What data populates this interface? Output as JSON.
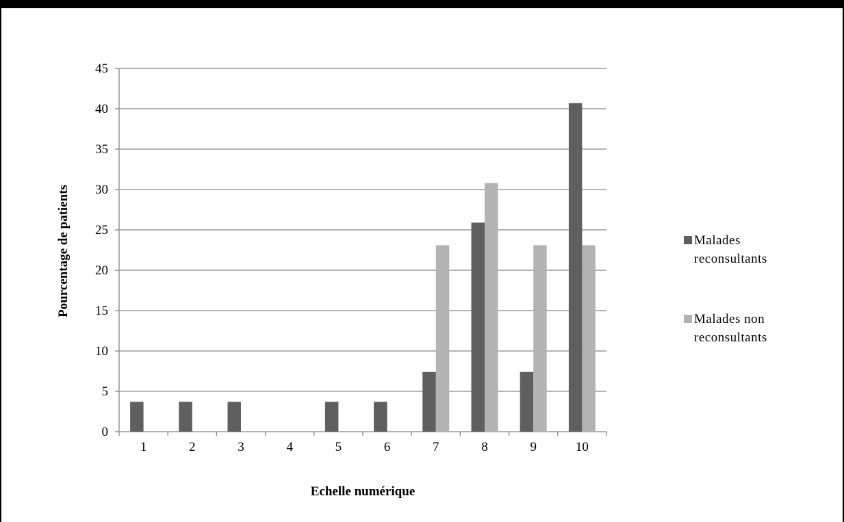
{
  "chart_data": {
    "type": "bar",
    "title": "",
    "xlabel": "Echelle numérique",
    "ylabel": "Pourcentage de patients",
    "categories": [
      "1",
      "2",
      "3",
      "4",
      "5",
      "6",
      "7",
      "8",
      "9",
      "10"
    ],
    "series": [
      {
        "name_lines": [
          "Malades",
          "reconsultants"
        ],
        "color": "#5f5f5f",
        "values": [
          3.7,
          3.7,
          3.7,
          0,
          3.7,
          3.7,
          7.4,
          25.9,
          7.4,
          40.7
        ]
      },
      {
        "name_lines": [
          "Malades non",
          "reconsultants"
        ],
        "color": "#b3b3b3",
        "values": [
          0,
          0,
          0,
          0,
          0,
          0,
          23.1,
          30.8,
          23.1,
          23.1
        ]
      }
    ],
    "ylim": [
      0,
      45
    ],
    "yticks": [
      0,
      5,
      10,
      15,
      20,
      25,
      30,
      35,
      40,
      45
    ],
    "grid": "horizontal",
    "gridline_color": "#868686",
    "legend_position": "right"
  }
}
